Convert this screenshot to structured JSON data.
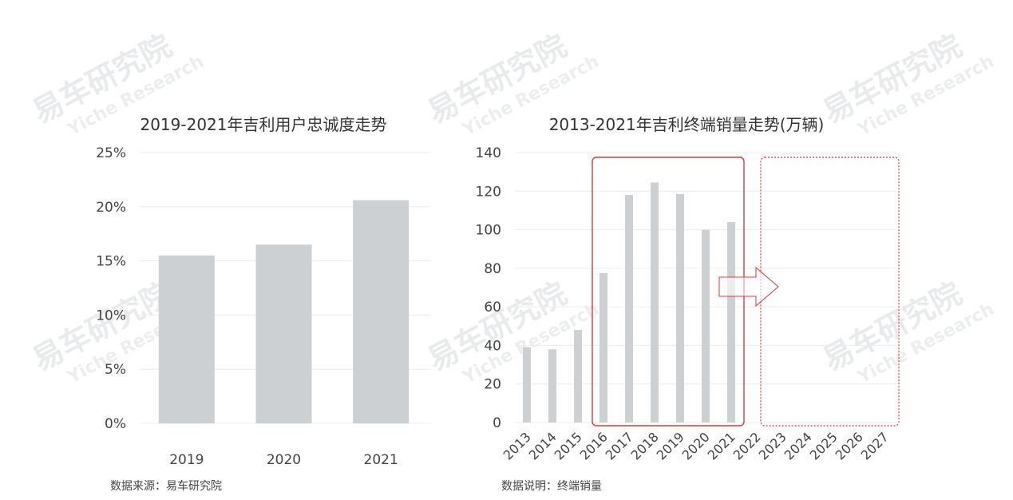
{
  "watermark": {
    "brand": "易车研究院",
    "sub": "Yiche Research"
  },
  "chart_data": [
    {
      "type": "bar",
      "title": "2019-2021年吉利用户忠诚度走势",
      "categories": [
        "2019",
        "2020",
        "2021"
      ],
      "values": [
        15.5,
        16.5,
        20.6
      ],
      "yticks": [
        "0%",
        "5%",
        "10%",
        "15%",
        "20%",
        "25%"
      ],
      "ylim": [
        0,
        25
      ],
      "grid": true,
      "bar_color": "#cdd0d3",
      "source_note": "数据来源：易车研究院"
    },
    {
      "type": "bar",
      "title": "2013-2021年吉利终端销量走势(万辆)",
      "categories": [
        "2013",
        "2014",
        "2015",
        "2016",
        "2017",
        "2018",
        "2019",
        "2020",
        "2021",
        "2022",
        "2023",
        "2024",
        "2025",
        "2026",
        "2027"
      ],
      "values": [
        39,
        38,
        48,
        77.5,
        118,
        124.5,
        118.5,
        100,
        104,
        null,
        null,
        null,
        null,
        null,
        null
      ],
      "yticks": [
        "0",
        "20",
        "40",
        "60",
        "80",
        "100",
        "120",
        "140"
      ],
      "ylim": [
        0,
        140
      ],
      "grid": true,
      "bar_color": "#cdd0d3",
      "highlight_color": "#e0393e",
      "highlight_range": [
        "2016",
        "2021"
      ],
      "forecast_range": [
        "2022",
        "2027"
      ],
      "source_note": "数据说明：终端销量"
    }
  ]
}
